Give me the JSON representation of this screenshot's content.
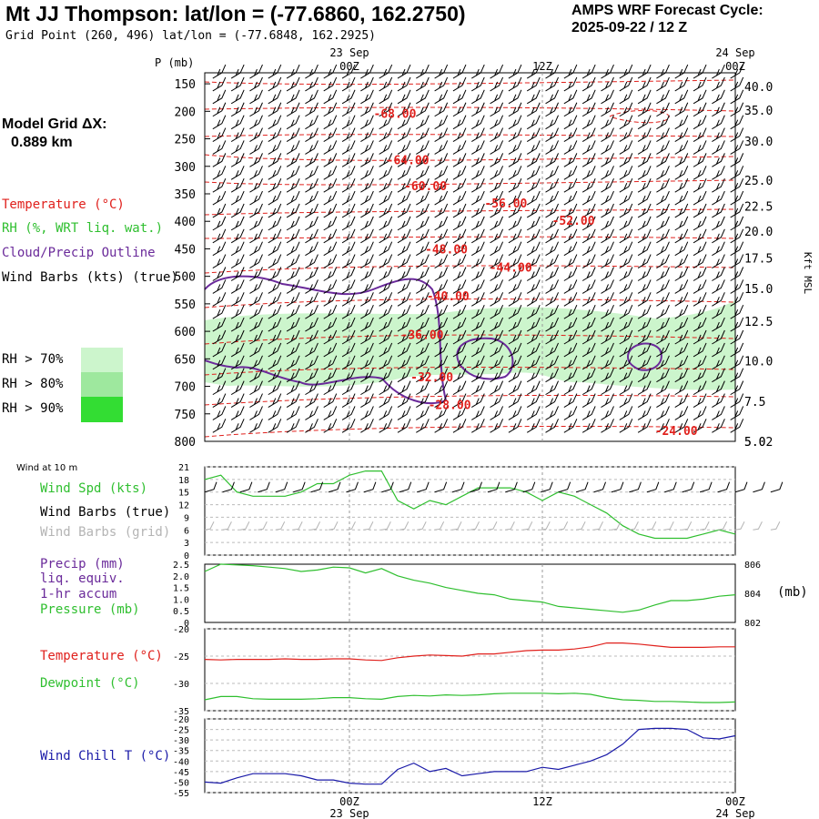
{
  "header": {
    "title": "Mt JJ Thompson:  lat/lon = (-77.6860, 162.2750)",
    "subtitle": "Grid Point (260, 496) lat/lon = (-77.6848, 162.2925)",
    "cycle_line1": "AMPS WRF Forecast Cycle:",
    "cycle_line2": "2025-09-22 / 12  Z"
  },
  "model_grid": {
    "line1": "Model Grid ΔX:",
    "line2": "0.889 km"
  },
  "colors": {
    "temperature": "#e0201c",
    "rh": "#2fbf2f",
    "cloud": "#6a2a9a",
    "wind": "#000000",
    "wind_grid": "#b4b4b4",
    "windchill": "#1a1aa8",
    "rh70": "#ccf5cc",
    "rh80": "#9ee89e",
    "rh90": "#33dd33"
  },
  "legend": {
    "temperature": "Temperature (°C)",
    "rh": "RH (%, WRT liq. wat.)",
    "cloud": "Cloud/Precip Outline",
    "wind": "Wind Barbs (kts) (true)",
    "rh70": "RH > 70%",
    "rh80": "RH > 80%",
    "rh90": "RH > 90%"
  },
  "panel_labels": {
    "wind10m": "Wind at 10 m",
    "windspd": "Wind Spd (kts)",
    "barbs_true": "Wind Barbs (true)",
    "barbs_grid": "Wind Barbs (grid)",
    "precip1": "Precip (mm)",
    "precip2": "liq. equiv.",
    "precip3": "1-hr accum",
    "pressure": "Pressure (mb)",
    "pressure_unit": "(mb)",
    "temp": "Temperature (°C)",
    "dewpoint": "Dewpoint (°C)",
    "windchill": "Wind Chill T (°C)"
  },
  "time_axis": {
    "top_labels": [
      {
        "hour": 9,
        "day": "23 Sep",
        "time": "00Z"
      },
      {
        "hour": 21,
        "day": "",
        "time": "12Z"
      },
      {
        "hour": 33,
        "day": "24 Sep",
        "time": "00Z"
      }
    ],
    "bottom_labels": [
      {
        "hour": 9,
        "time": "00Z",
        "day": "23 Sep"
      },
      {
        "hour": 21,
        "time": "12Z",
        "day": ""
      },
      {
        "hour": 33,
        "time": "00Z",
        "day": "24 Sep"
      }
    ],
    "range_hours": [
      0,
      33
    ]
  },
  "chart_data": [
    {
      "type": "contour",
      "name": "cross-section",
      "y_axis_title": "P (mb)",
      "y_range_mb": [
        130,
        800
      ],
      "pressure_ticks": [
        150,
        200,
        250,
        300,
        350,
        400,
        450,
        500,
        550,
        600,
        650,
        700,
        750,
        800
      ],
      "kft_title": "Kft MSL",
      "kft_ticks": [
        {
          "label": "40.0",
          "p": 155
        },
        {
          "label": "35.0",
          "p": 198
        },
        {
          "label": "30.0",
          "p": 254
        },
        {
          "label": "25.0",
          "p": 325
        },
        {
          "label": "22.5",
          "p": 372
        },
        {
          "label": "20.0",
          "p": 418
        },
        {
          "label": "17.5",
          "p": 467
        },
        {
          "label": "15.0",
          "p": 522
        },
        {
          "label": "12.5",
          "p": 582
        },
        {
          "label": "10.0",
          "p": 654
        },
        {
          "label": "7.5",
          "p": 727
        },
        {
          "label": "5.0",
          "p": 800
        },
        {
          "label": "5.02",
          "p": 800
        }
      ],
      "temperature_contours": [
        {
          "label": "-68.00",
          "hour": 10.5,
          "p": 205
        },
        {
          "label": "-64.00",
          "hour": 11.3,
          "p": 290
        },
        {
          "label": "-60.00",
          "hour": 12.4,
          "p": 337
        },
        {
          "label": "-56.00",
          "hour": 17.4,
          "p": 368
        },
        {
          "label": "-52.00",
          "hour": 21.6,
          "p": 400
        },
        {
          "label": "-48.00",
          "hour": 13.7,
          "p": 452
        },
        {
          "label": "-44.00",
          "hour": 17.7,
          "p": 485
        },
        {
          "label": "-40.00",
          "hour": 13.8,
          "p": 537
        },
        {
          "label": "-36.00",
          "hour": 12.2,
          "p": 607
        },
        {
          "label": "-32.00",
          "hour": 12.8,
          "p": 684
        },
        {
          "label": "-28.00",
          "hour": 13.9,
          "p": 735
        },
        {
          "label": "-24.00",
          "hour": 28.0,
          "p": 782
        }
      ]
    },
    {
      "type": "line",
      "name": "wind-speed",
      "ylim": [
        0,
        21
      ],
      "yticks": [
        0,
        3,
        6,
        9,
        12,
        15,
        18,
        21
      ],
      "x_hours": [
        0,
        1,
        2,
        3,
        4,
        5,
        6,
        7,
        8,
        9,
        10,
        11,
        12,
        13,
        14,
        15,
        16,
        17,
        18,
        19,
        20,
        21,
        22,
        23,
        24,
        25,
        26,
        27,
        28,
        29,
        30,
        31,
        32,
        33
      ],
      "values": [
        18,
        19,
        15,
        14,
        14,
        14,
        15,
        17,
        17,
        19,
        20,
        20,
        13,
        11,
        13,
        12,
        14,
        16,
        16,
        16,
        15,
        13,
        15,
        14,
        12,
        10,
        7,
        5,
        4,
        4,
        4,
        5,
        6,
        5
      ]
    },
    {
      "type": "line",
      "name": "pressure",
      "y_left_ticks": [
        0,
        0.5,
        1.0,
        1.5,
        2.0,
        2.5
      ],
      "y_right_ticks": [
        802,
        804,
        806
      ],
      "ylim": [
        802,
        806
      ],
      "x_hours": [
        0,
        1,
        2,
        3,
        4,
        5,
        6,
        7,
        8,
        9,
        10,
        11,
        12,
        13,
        14,
        15,
        16,
        17,
        18,
        19,
        20,
        21,
        22,
        23,
        24,
        25,
        26,
        27,
        28,
        29,
        30,
        31,
        32,
        33
      ],
      "values": [
        805.5,
        806.0,
        805.95,
        805.9,
        805.8,
        805.7,
        805.5,
        805.6,
        805.8,
        805.75,
        805.4,
        805.7,
        805.2,
        804.9,
        804.7,
        804.4,
        804.2,
        804.0,
        803.9,
        803.6,
        803.5,
        803.4,
        803.1,
        803.0,
        802.9,
        802.8,
        802.7,
        802.85,
        803.2,
        803.5,
        803.5,
        803.6,
        803.8,
        803.9
      ]
    },
    {
      "type": "line",
      "name": "temperature-dewpoint",
      "ylim": [
        -35,
        -20
      ],
      "yticks": [
        -35,
        -30,
        -25,
        -20
      ],
      "x_hours": [
        0,
        1,
        2,
        3,
        4,
        5,
        6,
        7,
        8,
        9,
        10,
        11,
        12,
        13,
        14,
        15,
        16,
        17,
        18,
        19,
        20,
        21,
        22,
        23,
        24,
        25,
        26,
        27,
        28,
        29,
        30,
        31,
        32,
        33
      ],
      "series": [
        {
          "name": "Temperature",
          "values": [
            -25.6,
            -25.7,
            -25.6,
            -25.6,
            -25.6,
            -25.5,
            -25.6,
            -25.6,
            -25.5,
            -25.5,
            -25.7,
            -25.8,
            -25.3,
            -25.0,
            -24.8,
            -24.9,
            -25.0,
            -24.6,
            -24.6,
            -24.3,
            -24.0,
            -23.9,
            -23.9,
            -23.7,
            -23.3,
            -22.6,
            -22.6,
            -22.8,
            -23.1,
            -23.4,
            -23.4,
            -23.4,
            -23.3,
            -23.3
          ]
        },
        {
          "name": "Dewpoint",
          "values": [
            -33.0,
            -32.4,
            -32.4,
            -32.8,
            -32.9,
            -32.9,
            -32.9,
            -32.8,
            -32.6,
            -32.6,
            -32.8,
            -32.9,
            -32.4,
            -32.2,
            -32.3,
            -32.1,
            -32.2,
            -32.1,
            -31.9,
            -31.8,
            -31.8,
            -31.8,
            -31.9,
            -31.8,
            -32.0,
            -32.6,
            -33.0,
            -33.1,
            -33.3,
            -33.3,
            -33.4,
            -33.5,
            -33.5,
            -33.4
          ]
        }
      ]
    },
    {
      "type": "line",
      "name": "wind-chill",
      "ylim": [
        -55,
        -20
      ],
      "yticks": [
        -55,
        -50,
        -45,
        -40,
        -35,
        -30,
        -25,
        -20
      ],
      "x_hours": [
        0,
        1,
        2,
        3,
        4,
        5,
        6,
        7,
        8,
        9,
        10,
        11,
        12,
        13,
        14,
        15,
        16,
        17,
        18,
        19,
        20,
        21,
        22,
        23,
        24,
        25,
        26,
        27,
        28,
        29,
        30,
        31,
        32,
        33
      ],
      "values": [
        -50,
        -50.5,
        -48,
        -46,
        -46,
        -46,
        -47,
        -49,
        -49,
        -50.5,
        -51,
        -51,
        -44,
        -41,
        -45,
        -43.5,
        -47,
        -46,
        -45,
        -45,
        -45,
        -43,
        -44,
        -42,
        -40,
        -37,
        -32,
        -25,
        -24.5,
        -24.5,
        -25,
        -29,
        -29.5,
        -28
      ]
    }
  ]
}
